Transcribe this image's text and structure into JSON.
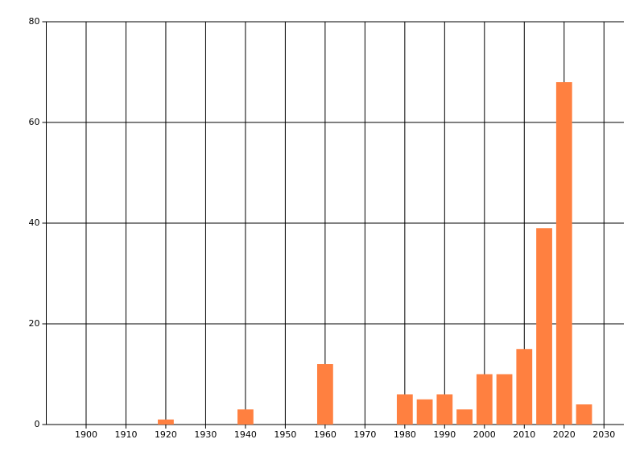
{
  "chart_data": {
    "type": "bar",
    "x": [
      1920,
      1940,
      1960,
      1980,
      1985,
      1990,
      1995,
      2000,
      2005,
      2010,
      2015,
      2020,
      2025
    ],
    "values": [
      1,
      3,
      12,
      6,
      5,
      6,
      3,
      10,
      10,
      15,
      39,
      68,
      4
    ],
    "color": "#ff8040",
    "xlim": [
      1890,
      2035
    ],
    "xticks": [
      1900,
      1910,
      1920,
      1930,
      1940,
      1950,
      1960,
      1970,
      1980,
      1990,
      2000,
      2010,
      2020,
      2030
    ],
    "ylim": [
      0,
      80
    ],
    "yticks": [
      0,
      20,
      40,
      60,
      80
    ],
    "grid": true
  }
}
